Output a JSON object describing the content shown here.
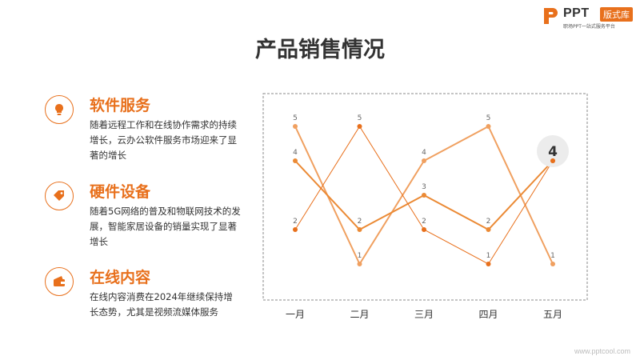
{
  "brand": {
    "name": "PPT",
    "tag": "版式库",
    "subtitle": "职场PPT一站式服务平台"
  },
  "page_title": "产品销售情况",
  "items": [
    {
      "title": "软件服务",
      "icon": "lightbulb-icon",
      "desc": "随着远程工作和在线协作需求的持续增长，云办公软件服务市场迎来了显著的增长"
    },
    {
      "title": "硬件设备",
      "icon": "price-tag-icon",
      "desc": "随着5G网络的普及和物联网技术的发展，智能家居设备的销量实现了显著增长"
    },
    {
      "title": "在线内容",
      "icon": "wallet-icon",
      "desc": "在线内容消费在2024年继续保持增长态势，尤其是视频流媒体服务"
    }
  ],
  "chart_data": {
    "type": "line",
    "categories": [
      "一月",
      "二月",
      "三月",
      "四月",
      "五月"
    ],
    "series": [
      {
        "values": [
          5,
          1,
          4,
          5,
          1
        ],
        "color": "#f0a060"
      },
      {
        "values": [
          4,
          2,
          3,
          2,
          4
        ],
        "color": "#eb8a35"
      },
      {
        "values": [
          2,
          5,
          2,
          1,
          4
        ],
        "color": "#e8701c"
      }
    ],
    "highlight": {
      "category": "五月",
      "label": "4"
    },
    "ylim": [
      0,
      6
    ]
  },
  "colors": {
    "accent": "#e8701c",
    "text": "#333333"
  },
  "footer_url": "www.pptcool.com"
}
